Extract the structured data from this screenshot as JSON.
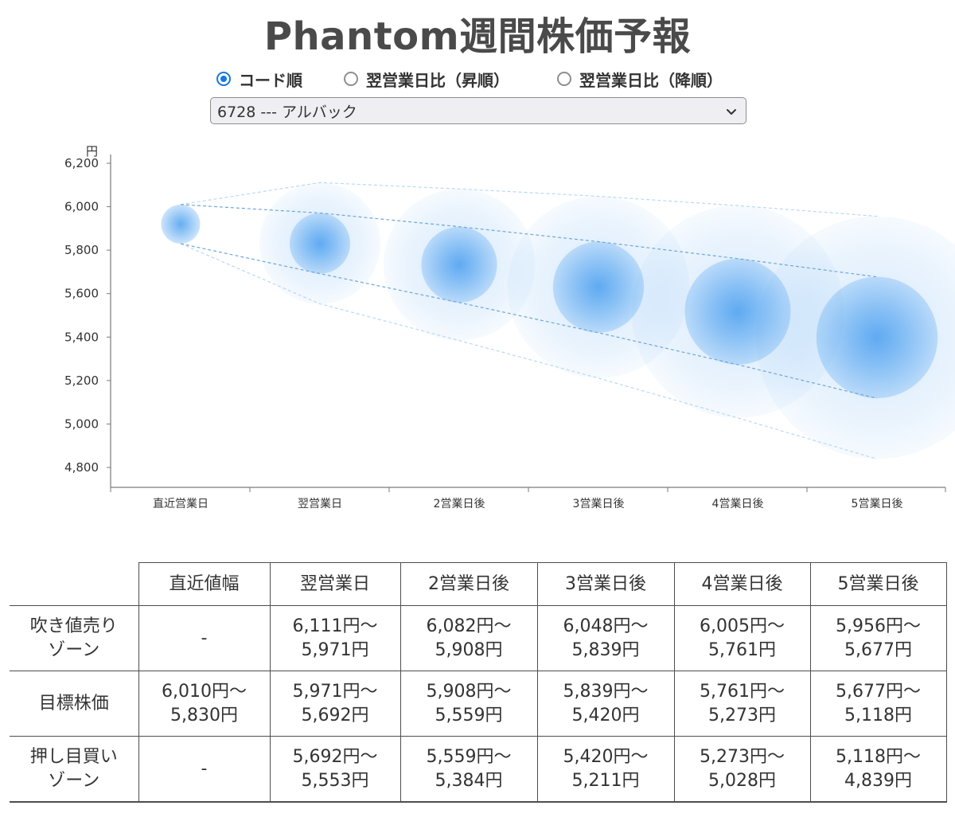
{
  "title": "Phantom週間株価予報",
  "sort_options": [
    {
      "label": "コード順",
      "checked": true
    },
    {
      "label": "翌営業日比（昇順）",
      "checked": false
    },
    {
      "label": "翌営業日比（降順）",
      "checked": false
    }
  ],
  "stock_select": {
    "value": "6728 --- アルバック"
  },
  "chart_data": {
    "type": "scatter",
    "categories": [
      "直近営業日",
      "翌営業日",
      "2営業日後",
      "3営業日後",
      "4営業日後",
      "5営業日後"
    ],
    "y_unit": "円",
    "ylim": [
      4750,
      6200
    ],
    "yticks": [
      6200,
      6000,
      5800,
      5600,
      5400,
      5200,
      5000,
      4800
    ],
    "ytick_labels": [
      "6,200",
      "6,000",
      "5,800",
      "5,600",
      "5,400",
      "5,200",
      "5,000",
      "4,800"
    ],
    "center": [
      5920,
      5831,
      5733,
      5630,
      5517,
      5398
    ],
    "target_high": [
      6010,
      5971,
      5908,
      5839,
      5761,
      5677
    ],
    "target_low": [
      5830,
      5692,
      5559,
      5420,
      5273,
      5118
    ],
    "zone_high": [
      6010,
      6111,
      6082,
      6048,
      6005,
      5956
    ],
    "zone_low": [
      5830,
      5553,
      5384,
      5211,
      5028,
      4839
    ],
    "accent_color": "#4a9ff0"
  },
  "table": {
    "columns": [
      "直近値幅",
      "翌営業日",
      "2営業日後",
      "3営業日後",
      "4営業日後",
      "5営業日後"
    ],
    "rows": [
      {
        "label": [
          "吹き値売り",
          "ゾーン"
        ],
        "cells": [
          [
            "-"
          ],
          [
            "6,111円〜",
            "5,971円"
          ],
          [
            "6,082円〜",
            "5,908円"
          ],
          [
            "6,048円〜",
            "5,839円"
          ],
          [
            "6,005円〜",
            "5,761円"
          ],
          [
            "5,956円〜",
            "5,677円"
          ]
        ]
      },
      {
        "label": [
          "目標株価"
        ],
        "cells": [
          [
            "6,010円〜",
            "5,830円"
          ],
          [
            "5,971円〜",
            "5,692円"
          ],
          [
            "5,908円〜",
            "5,559円"
          ],
          [
            "5,839円〜",
            "5,420円"
          ],
          [
            "5,761円〜",
            "5,273円"
          ],
          [
            "5,677円〜",
            "5,118円"
          ]
        ]
      },
      {
        "label": [
          "押し目買い",
          "ゾーン"
        ],
        "cells": [
          [
            "-"
          ],
          [
            "5,692円〜",
            "5,553円"
          ],
          [
            "5,559円〜",
            "5,384円"
          ],
          [
            "5,420円〜",
            "5,211円"
          ],
          [
            "5,273円〜",
            "5,028円"
          ],
          [
            "5,118円〜",
            "4,839円"
          ]
        ]
      }
    ]
  }
}
